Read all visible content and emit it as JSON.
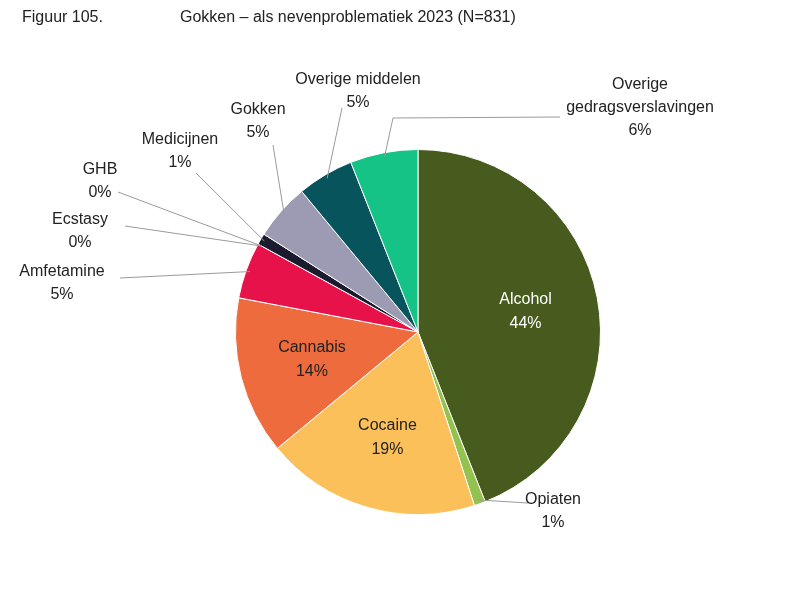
{
  "chart_data": {
    "type": "pie",
    "title": "Gokken – als nevenproblematiek 2023 (N=831)",
    "annotations": [
      "Figuur 105."
    ],
    "categories": [
      "Alcohol",
      "Opiaten",
      "Cocaine",
      "Cannabis",
      "Amfetamine",
      "Ecstasy",
      "GHB",
      "Medicijnen",
      "Gokken",
      "Overige middelen",
      "Overige gedragsverslavingen"
    ],
    "values": [
      44,
      1,
      19,
      14,
      5,
      0,
      0,
      1,
      5,
      5,
      6
    ],
    "value_labels": [
      "44%",
      "1%",
      "19%",
      "14%",
      "5%",
      "0%",
      "0%",
      "1%",
      "5%",
      "5%",
      "6%"
    ],
    "colors": [
      "#475b1e",
      "#93c24f",
      "#fcc05a",
      "#ed6b3c",
      "#e8124b",
      "#d9d9d9",
      "#a6a6a6",
      "#1b1b2f",
      "#9d9ab3",
      "#07545c",
      "#16c387"
    ],
    "data_labels": true
  }
}
